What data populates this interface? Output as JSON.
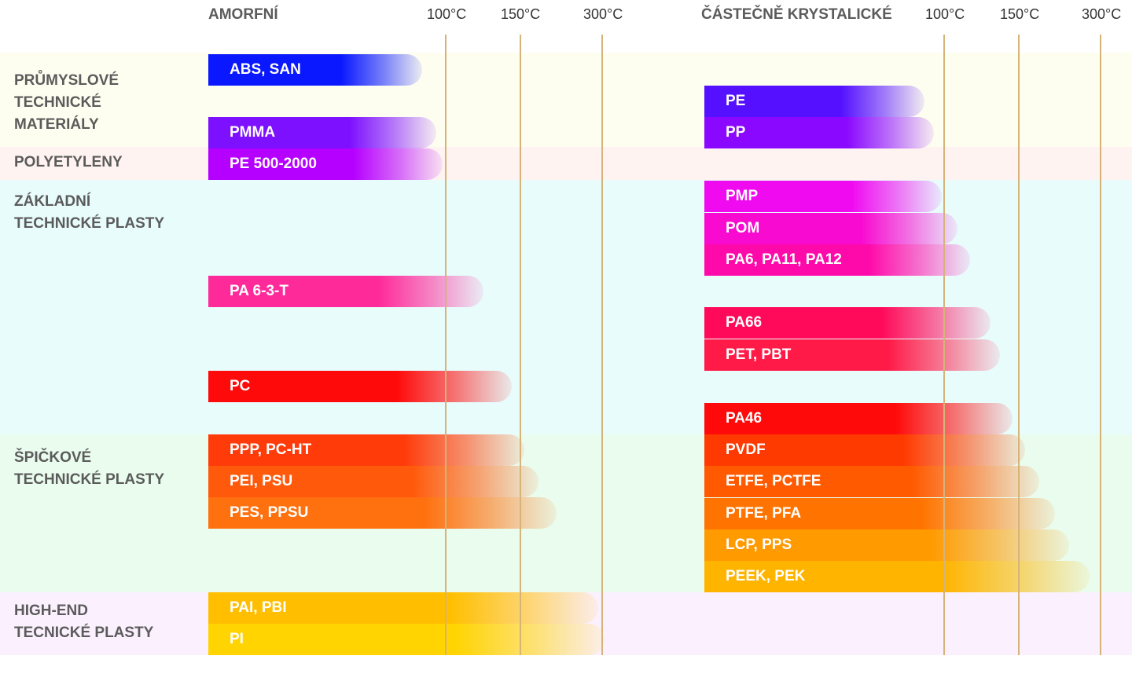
{
  "headers": {
    "amorphous": "AMORFNÍ",
    "semicrystalline": "ČÁSTEČNĚ KRYSTALICKÉ"
  },
  "ticks_amorphous": [
    "100°C",
    "150°C",
    "300°C"
  ],
  "ticks_semicrystalline": [
    "100°C",
    "150°C",
    "300°C"
  ],
  "bands": [
    {
      "label": "PRŮMYSLOVÉ\nTECHNICKÉ\nMATERIÁLY",
      "color": "#fefef0"
    },
    {
      "label": "POLYETYLENY",
      "color": "#fef3f0"
    },
    {
      "label": "ZÁKLADNÍ\nTECHNICKÉ  PLASTY",
      "color": "#e8fcfc"
    },
    {
      "label": "ŠPIČKOVÉ\nTECHNICKÉ PLASTY",
      "color": "#e9fced"
    },
    {
      "label": "HIGH-END\nTECNICKÉ PLASTY",
      "color": "#fbf0fe"
    }
  ],
  "chart_data": {
    "type": "bar",
    "orientation": "horizontal",
    "note_axis": "axis ticks 100°C, 150°C, 300°C shown as reference lines",
    "series": [
      {
        "name": "AMORFNÍ",
        "bars": [
          {
            "label": "ABS, SAN",
            "category": "PRŮMYSLOVÉ TECHNICKÉ MATERIÁLY",
            "color": "#0a18ff"
          },
          {
            "label": "PMMA",
            "category": "PRŮMYSLOVÉ TECHNICKÉ MATERIÁLY",
            "color": "#7d10ff"
          },
          {
            "label": "PE 500-2000",
            "category": "POLYETYLENY",
            "color": "#b600ff"
          },
          {
            "label": "PA 6-3-T",
            "category": "ZÁKLADNÍ TECHNICKÉ PLASTY",
            "color": "#ff2a9a"
          },
          {
            "label": "PC",
            "category": "ZÁKLADNÍ TECHNICKÉ PLASTY",
            "color": "#ff0a0a"
          },
          {
            "label": "PPP, PC-HT",
            "category": "ŠPIČKOVÉ TECHNICKÉ PLASTY",
            "color": "#ff3b0a"
          },
          {
            "label": "PEI, PSU",
            "category": "ŠPIČKOVÉ TECHNICKÉ PLASTY",
            "color": "#ff5a0c"
          },
          {
            "label": "PES, PPSU",
            "category": "ŠPIČKOVÉ TECHNICKÉ PLASTY",
            "color": "#ff700e"
          },
          {
            "label": "PAI, PBI",
            "category": "HIGH-END TECNICKÉ PLASTY",
            "color": "#ffbf00"
          },
          {
            "label": "PI",
            "category": "HIGH-END TECNICKÉ PLASTY",
            "color": "#ffd400"
          }
        ]
      },
      {
        "name": "ČÁSTEČNĚ KRYSTALICKÉ",
        "bars": [
          {
            "label": "PE",
            "category": "PRŮMYSLOVÉ TECHNICKÉ MATERIÁLY",
            "color": "#5410ff"
          },
          {
            "label": "PP",
            "category": "PRŮMYSLOVÉ TECHNICKÉ MATERIÁLY",
            "color": "#8a08ff"
          },
          {
            "label": "PMP",
            "category": "ZÁKLADNÍ TECHNICKÉ PLASTY",
            "color": "#f00af0"
          },
          {
            "label": "POM",
            "category": "ZÁKLADNÍ TECHNICKÉ PLASTY",
            "color": "#f80ad0"
          },
          {
            "label": "PA6, PA11, PA12",
            "category": "ZÁKLADNÍ TECHNICKÉ PLASTY",
            "color": "#ff0aaa"
          },
          {
            "label": "PA66",
            "category": "ZÁKLADNÍ TECHNICKÉ PLASTY",
            "color": "#ff0a5a"
          },
          {
            "label": "PET, PBT",
            "category": "ZÁKLADNÍ TECHNICKÉ PLASTY",
            "color": "#ff1a48"
          },
          {
            "label": "PA46",
            "category": "ZÁKLADNÍ TECHNICKÉ PLASTY",
            "color": "#ff0a0a"
          },
          {
            "label": "PVDF",
            "category": "ŠPIČKOVÉ TECHNICKÉ PLASTY",
            "color": "#ff3a00"
          },
          {
            "label": "ETFE, PCTFE",
            "category": "ŠPIČKOVÉ TECHNICKÉ PLASTY",
            "color": "#ff5a00"
          },
          {
            "label": "PTFE, PFA",
            "category": "ŠPIČKOVÉ TECHNICKÉ PLASTY",
            "color": "#ff7400"
          },
          {
            "label": "LCP, PPS",
            "category": "ŠPIČKOVÉ TECHNICKÉ PLASTY",
            "color": "#ff9a00"
          },
          {
            "label": "PEEK, PEK",
            "category": "ŠPIČKOVÉ TECHNICKÉ PLASTY",
            "color": "#ffb400"
          }
        ]
      }
    ]
  }
}
